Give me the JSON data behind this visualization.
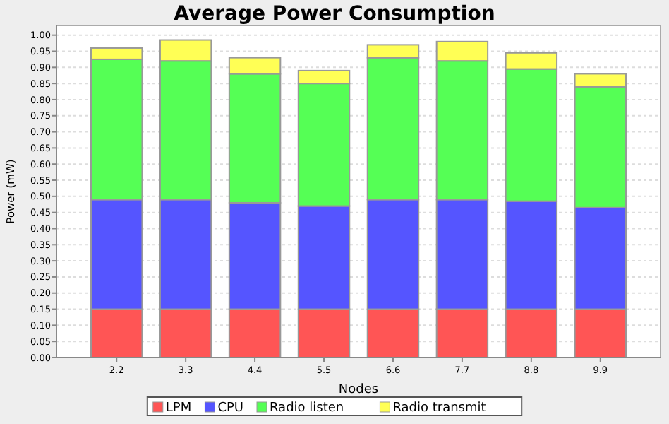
{
  "chart_data": {
    "type": "bar",
    "title": "Average Power Consumption",
    "xlabel": "Nodes",
    "ylabel": "Power (mW)",
    "categories": [
      "2.2",
      "3.3",
      "4.4",
      "5.5",
      "6.6",
      "7.7",
      "8.8",
      "9.9"
    ],
    "stacked": true,
    "series": [
      {
        "name": "LPM",
        "color": "#ff5555",
        "values": [
          0.15,
          0.15,
          0.15,
          0.15,
          0.15,
          0.15,
          0.15,
          0.15
        ]
      },
      {
        "name": "CPU",
        "color": "#5555ff",
        "values": [
          0.34,
          0.34,
          0.33,
          0.32,
          0.34,
          0.34,
          0.335,
          0.315
        ]
      },
      {
        "name": "Radio listen",
        "color": "#55ff55",
        "values": [
          0.435,
          0.43,
          0.4,
          0.38,
          0.44,
          0.43,
          0.41,
          0.375
        ]
      },
      {
        "name": "Radio transmit",
        "color": "#ffff55",
        "values": [
          0.035,
          0.065,
          0.05,
          0.04,
          0.04,
          0.06,
          0.05,
          0.04
        ]
      }
    ],
    "ylim": [
      0,
      1.03
    ],
    "yticks": [
      {
        "value": 0,
        "label": "0.00"
      },
      {
        "value": 0.05,
        "label": "0.05"
      },
      {
        "value": 0.1,
        "label": "0.10"
      },
      {
        "value": 0.15,
        "label": "0.15"
      },
      {
        "value": 0.2,
        "label": "0.20"
      },
      {
        "value": 0.25,
        "label": "0.25"
      },
      {
        "value": 0.3,
        "label": "0.30"
      },
      {
        "value": 0.35,
        "label": "0.35"
      },
      {
        "value": 0.4,
        "label": "0.40"
      },
      {
        "value": 0.45,
        "label": "0.45"
      },
      {
        "value": 0.5,
        "label": "0.50"
      },
      {
        "value": 0.55,
        "label": "0.55"
      },
      {
        "value": 0.6,
        "label": "0.60"
      },
      {
        "value": 0.65,
        "label": "0.65"
      },
      {
        "value": 0.7,
        "label": "0.70"
      },
      {
        "value": 0.75,
        "label": "0.75"
      },
      {
        "value": 0.8,
        "label": "0.80"
      },
      {
        "value": 0.85,
        "label": "0.85"
      },
      {
        "value": 0.9,
        "label": "0.90"
      },
      {
        "value": 0.95,
        "label": "0.95"
      },
      {
        "value": 1,
        "label": "1.00"
      }
    ],
    "grid": "y",
    "legend": "bottom"
  }
}
